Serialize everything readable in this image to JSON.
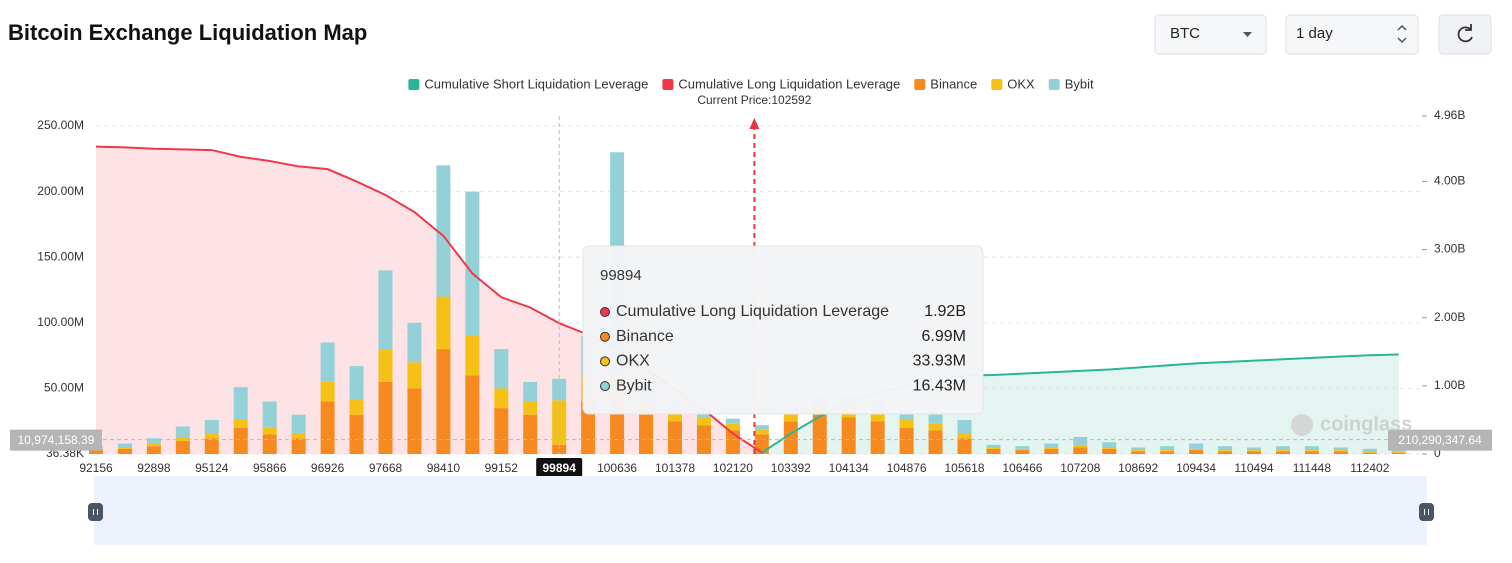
{
  "controls": {
    "symbol": "BTC",
    "interval": "1 day"
  },
  "chart_data": {
    "type": "bar",
    "title": "Bitcoin Exchange Liquidation Map",
    "categories": [
      "92156",
      null,
      "92898",
      null,
      "95124",
      null,
      "95866",
      null,
      "96926",
      null,
      "97668",
      null,
      "98410",
      null,
      "99152",
      null,
      "99894",
      null,
      "100636",
      null,
      "101378",
      null,
      "102120",
      null,
      "103392",
      null,
      "104134",
      null,
      "104876",
      null,
      "105618",
      null,
      "106466",
      null,
      "107208",
      null,
      "108692",
      null,
      "109434",
      null,
      "110494",
      null,
      "111448",
      null,
      "112402",
      null
    ],
    "series": [
      {
        "name": "Cumulative Short Liquidation Leverage",
        "type": "line",
        "axis": "y2",
        "color": "#2bb596",
        "area_color": "#e3f4f1",
        "values": [
          null,
          null,
          null,
          null,
          null,
          null,
          null,
          null,
          null,
          null,
          null,
          null,
          null,
          null,
          null,
          null,
          null,
          null,
          null,
          null,
          null,
          null,
          null,
          20000000.0,
          300000000.0,
          550000000.0,
          780000000.0,
          900000000.0,
          1000000000.0,
          1100000000.0,
          1150000000.0,
          1160000000.0,
          1180000000.0,
          1200000000.0,
          1220000000.0,
          1240000000.0,
          1270000000.0,
          1300000000.0,
          1330000000.0,
          1350000000.0,
          1370000000.0,
          1390000000.0,
          1410000000.0,
          1430000000.0,
          1450000000.0,
          1460000000.0
        ]
      },
      {
        "name": "Cumulative Long Liquidation Leverage",
        "type": "line",
        "axis": "y2",
        "color": "#f0384a",
        "area_color": "#fde3e6",
        "values": [
          4510000000.0,
          4500000000.0,
          4480000000.0,
          4470000000.0,
          4460000000.0,
          4360000000.0,
          4300000000.0,
          4220000000.0,
          4180000000.0,
          4000000000.0,
          3800000000.0,
          3550000000.0,
          3200000000.0,
          2650000000.0,
          2300000000.0,
          2150000000.0,
          1920000000.0,
          1750000000.0,
          1550000000.0,
          1250000000.0,
          950000000.0,
          650000000.0,
          300000000.0,
          20000000.0,
          null,
          null,
          null,
          null,
          null,
          null,
          null,
          null,
          null,
          null,
          null,
          null,
          null,
          null,
          null,
          null,
          null,
          null,
          null,
          null,
          null,
          null
        ]
      },
      {
        "name": "Binance",
        "type": "bar",
        "color": "#f68a1e",
        "values": [
          3000000.0,
          4000000.0,
          6000000.0,
          10000000.0,
          12000000.0,
          20000000.0,
          15000000.0,
          12000000.0,
          40000000.0,
          30000000.0,
          55000000.0,
          50000000.0,
          80000000.0,
          60000000.0,
          35000000.0,
          30000000.0,
          6990000.0,
          40000000.0,
          40000000.0,
          30000000.0,
          25000000.0,
          22000000.0,
          18000000.0,
          15000000.0,
          25000000.0,
          30000000.0,
          28000000.0,
          25000000.0,
          20000000.0,
          18000000.0,
          12000000.0,
          4000000.0,
          3000000.0,
          4000000.0,
          5000000.0,
          4000000.0,
          2000000.0,
          2000000.0,
          3000000.0,
          2000000.0,
          2000000.0,
          2000000.0,
          2000000.0,
          2000000.0,
          1000000.0,
          1000000.0
        ]
      },
      {
        "name": "OKX",
        "type": "bar",
        "color": "#f5c116",
        "values": [
          1000000.0,
          1000000.0,
          2000000.0,
          3000000.0,
          4000000.0,
          6000000.0,
          5000000.0,
          4000000.0,
          15000000.0,
          12000000.0,
          25000000.0,
          20000000.0,
          40000000.0,
          30000000.0,
          15000000.0,
          10000000.0,
          33930000.0,
          20000000.0,
          20000000.0,
          10000000.0,
          8000000.0,
          6000000.0,
          5000000.0,
          4000000.0,
          6000000.0,
          8000000.0,
          8000000.0,
          7000000.0,
          6000000.0,
          5000000.0,
          4000000.0,
          1000000.0,
          1000000.0,
          1000000.0,
          2000000.0,
          1000000.0,
          1000000.0,
          1000000.0,
          1000000.0,
          1000000.0,
          1000000.0,
          1000000.0,
          1000000.0,
          1000000.0,
          1000000.0,
          1000000.0
        ]
      },
      {
        "name": "Bybit",
        "type": "bar",
        "color": "#94d1d6",
        "values": [
          2000000.0,
          3000000.0,
          4000000.0,
          8000000.0,
          10000000.0,
          25000000.0,
          20000000.0,
          14000000.0,
          30000000.0,
          25000000.0,
          60000000.0,
          30000000.0,
          100000000.0,
          110000000.0,
          30000000.0,
          15000000.0,
          16430000.0,
          30000000.0,
          170000000.0,
          10000000.0,
          8000000.0,
          6000000.0,
          4000000.0,
          3000000.0,
          5000000.0,
          6000000.0,
          8000000.0,
          8000000.0,
          8000000.0,
          7000000.0,
          10000000.0,
          2000000.0,
          2000000.0,
          3000000.0,
          6000000.0,
          4000000.0,
          2000000.0,
          3000000.0,
          4000000.0,
          3000000.0,
          2000000.0,
          3000000.0,
          3000000.0,
          2000000.0,
          2000000.0,
          1000000.0
        ]
      }
    ],
    "ylim": [
      36380,
      257620000
    ],
    "yticks": [
      {
        "value": 36380,
        "label": "36.38K"
      },
      {
        "value": 50000000,
        "label": "50.00M"
      },
      {
        "value": 100000000,
        "label": "100.00M"
      },
      {
        "value": 150000000,
        "label": "150.00M"
      },
      {
        "value": 200000000,
        "label": "200.00M"
      },
      {
        "value": 250000000,
        "label": "250.00M"
      }
    ],
    "y2lim": [
      0,
      4960000000
    ],
    "y2ticks": [
      0,
      {
        "value": 1000000000,
        "label": "1.00B"
      },
      {
        "value": 2000000000,
        "label": "2.00B"
      },
      {
        "value": 3000000000,
        "label": "3.00B"
      },
      {
        "value": 4000000000,
        "label": "4.00B"
      },
      {
        "value": 4960000000,
        "label": "4.96B"
      }
    ],
    "grid": true,
    "current_price": {
      "value": 102592,
      "label": "Current Price:102592"
    },
    "axis_pointer": {
      "y": {
        "value": 10974158.39,
        "label": "10,974,158.39"
      },
      "y2": {
        "value": 210290347.64,
        "label": "210,290,347.64"
      }
    },
    "tooltip": {
      "title": "99894",
      "rows": [
        {
          "name": "Cumulative Long Liquidation Leverage",
          "value": "1.92B",
          "color": "#f0384a"
        },
        {
          "name": "Binance",
          "value": "6.99M",
          "color": "#f68a1e"
        },
        {
          "name": "OKX",
          "value": "33.93M",
          "color": "#f5c116"
        },
        {
          "name": "Bybit",
          "value": "16.43M",
          "color": "#94d1d6"
        }
      ]
    },
    "watermark": "coinglass"
  }
}
